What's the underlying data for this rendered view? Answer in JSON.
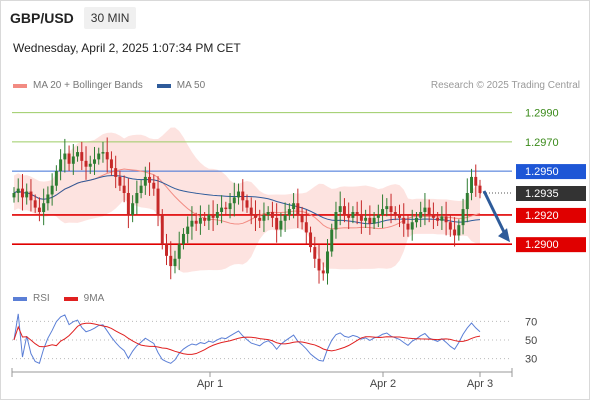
{
  "header": {
    "pair": "GBP/USD",
    "timeframe": "30 MIN",
    "datetime": "Wednesday, April 2, 2025 1:07:34 PM CET"
  },
  "legend": {
    "ma20": {
      "label": "MA 20 + Bollinger Bands",
      "color": "#f28b82"
    },
    "ma50": {
      "label": "MA 50",
      "color": "#2e5b9a"
    },
    "credit": "Research © 2025 Trading Central"
  },
  "rsi_legend": {
    "rsi": {
      "label": "RSI",
      "color": "#5b7fd6"
    },
    "ma9": {
      "label": "9MA",
      "color": "#e02020"
    }
  },
  "colors": {
    "up": "#2e7d32",
    "down": "#c62828",
    "band": "#fcd9d6",
    "target": "#2e5b9a",
    "support": "#e00000",
    "resistance_green": "#9ccc65",
    "current_bg": "#333333"
  },
  "chart_data": [
    {
      "type": "candlestick",
      "title": "GBP/USD",
      "ylim": [
        1.287,
        1.3
      ],
      "x_labels": [
        "Apr 1",
        "Apr 2",
        "Apr 3"
      ],
      "levels": [
        {
          "value": 1.299,
          "label": "1.2990",
          "kind": "resistance"
        },
        {
          "value": 1.297,
          "label": "1.2970",
          "kind": "resistance"
        },
        {
          "value": 1.295,
          "label": "1.2950",
          "kind": "pivot"
        },
        {
          "value": 1.2935,
          "label": "1.2935",
          "kind": "current"
        },
        {
          "value": 1.292,
          "label": "1.2920",
          "kind": "support"
        },
        {
          "value": 1.29,
          "label": "1.2900",
          "kind": "support"
        }
      ],
      "close": [
        1.2935,
        1.2938,
        1.2932,
        1.2936,
        1.293,
        1.2925,
        1.2922,
        1.2928,
        1.2934,
        1.294,
        1.295,
        1.2958,
        1.2962,
        1.2955,
        1.296,
        1.2963,
        1.2957,
        1.2953,
        1.2955,
        1.2958,
        1.2962,
        1.2963,
        1.2958,
        1.2952,
        1.2946,
        1.294,
        1.2935,
        1.292,
        1.2928,
        1.2935,
        1.294,
        1.2946,
        1.2942,
        1.2938,
        1.292,
        1.29,
        1.2892,
        1.2885,
        1.289,
        1.29,
        1.2907,
        1.2912,
        1.2916,
        1.2914,
        1.2918,
        1.2916,
        1.292,
        1.2918,
        1.2922,
        1.2925,
        1.2924,
        1.2928,
        1.2932,
        1.2936,
        1.293,
        1.2925,
        1.292,
        1.2918,
        1.2916,
        1.292,
        1.2922,
        1.2918,
        1.291,
        1.2916,
        1.292,
        1.2924,
        1.2928,
        1.292,
        1.2915,
        1.2908,
        1.2898,
        1.289,
        1.2882,
        1.288,
        1.2895,
        1.291,
        1.2922,
        1.2926,
        1.292,
        1.2918,
        1.2922,
        1.292,
        1.2916,
        1.2918,
        1.2914,
        1.2918,
        1.292,
        1.2924,
        1.2926,
        1.2922,
        1.292,
        1.2918,
        1.2914,
        1.291,
        1.2915,
        1.2918,
        1.2922,
        1.2925,
        1.292,
        1.2918,
        1.2916,
        1.2919,
        1.2915,
        1.291,
        1.2906,
        1.2913,
        1.2924,
        1.2935,
        1.2946,
        1.294,
        1.2935
      ],
      "rsi": {
        "levels": [
          70,
          50,
          30
        ],
        "ylim": [
          20,
          80
        ]
      }
    }
  ]
}
